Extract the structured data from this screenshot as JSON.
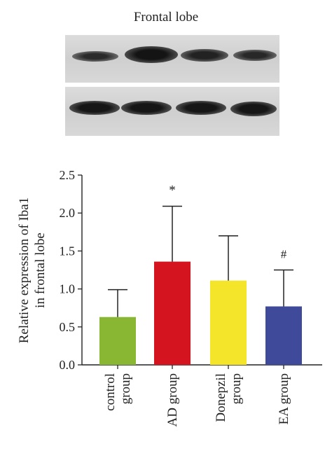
{
  "blot": {
    "title": "Frontal lobe"
  },
  "chart_data": {
    "type": "bar",
    "categories": [
      [
        "control",
        "group"
      ],
      [
        "AD group"
      ],
      [
        "Donepzil",
        "group"
      ],
      [
        "EA group"
      ]
    ],
    "values": [
      0.63,
      1.36,
      1.11,
      0.77
    ],
    "errors": [
      0.36,
      0.73,
      0.59,
      0.48
    ],
    "bar_colors": [
      "#8ab733",
      "#d4141e",
      "#f4e52a",
      "#3f4a9a"
    ],
    "annotations": [
      "",
      "*",
      "",
      "#"
    ],
    "ylabel": [
      "Relative expression of Iba1",
      "in frontal lobe"
    ],
    "ylim": [
      0,
      2.5
    ],
    "yticks": [
      "0.0",
      "0.5",
      "1.0",
      "1.5",
      "2.0",
      "2.5"
    ],
    "grid": false
  }
}
